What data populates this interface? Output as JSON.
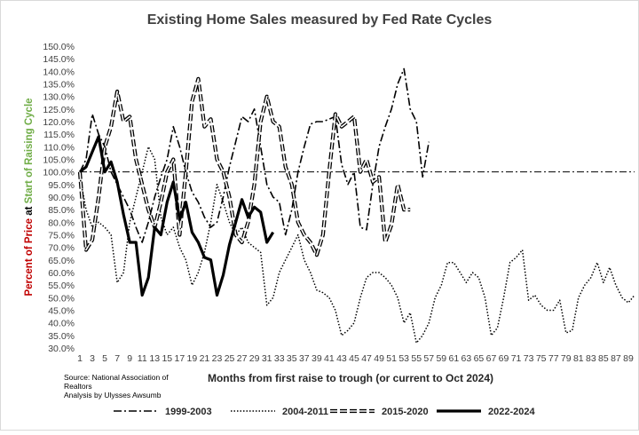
{
  "chart_data": {
    "type": "line",
    "title": "Existing Home  Sales  measured by Fed Rate Cycles",
    "xlabel": "Months from first raise to trough (or current to Oct 2024)",
    "ylabel_parts": [
      {
        "text": "Percent of Price",
        "color": "#c00000"
      },
      {
        "text": " at ",
        "color": "#000000"
      },
      {
        "text": "Start of Raising Cycle",
        "color": "#70ad47"
      }
    ],
    "ylim": [
      0.3,
      1.5
    ],
    "y_ticks": [
      0.3,
      0.35,
      0.4,
      0.45,
      0.5,
      0.55,
      0.6,
      0.65,
      0.7,
      0.75,
      0.8,
      0.85,
      0.9,
      0.95,
      1.0,
      1.05,
      1.1,
      1.15,
      1.2,
      1.25,
      1.3,
      1.35,
      1.4,
      1.45,
      1.5
    ],
    "y_tick_labels": [
      "30.0%",
      "35.0%",
      "40.0%",
      "45.0%",
      "50.0%",
      "55.0%",
      "60.0%",
      "65.0%",
      "70.0%",
      "75.0%",
      "80.0%",
      "85.0%",
      "90.0%",
      "95.0%",
      "100.0%",
      "105.0%",
      "110.0%",
      "115.0%",
      "120.0%",
      "125.0%",
      "130.0%",
      "135.0%",
      "140.0%",
      "145.0%",
      "150.0%"
    ],
    "xlim": [
      1,
      90
    ],
    "x_ticks": [
      1,
      3,
      5,
      7,
      9,
      11,
      13,
      15,
      17,
      19,
      21,
      23,
      25,
      27,
      29,
      31,
      33,
      35,
      37,
      39,
      41,
      43,
      45,
      47,
      49,
      51,
      53,
      55,
      57,
      59,
      61,
      63,
      65,
      67,
      69,
      71,
      73,
      75,
      77,
      79,
      81,
      83,
      85,
      87,
      89
    ],
    "x_tick_labels": [
      "1",
      "3",
      "5",
      "7",
      "9",
      "11",
      "13",
      "15",
      "17",
      "19",
      "21",
      "23",
      "25",
      "27",
      "29",
      "31",
      "33",
      "35",
      "37",
      "39",
      "41",
      "43",
      "45",
      "47",
      "49",
      "51",
      "53",
      "55",
      "57",
      "59",
      "61",
      "63",
      "65",
      "67",
      "69",
      "71",
      "73",
      "75",
      "77",
      "79",
      "81",
      "83",
      "85",
      "87",
      "89"
    ],
    "reference_line": 1.0,
    "grid": false,
    "legend_position": "bottom",
    "source_note": [
      "Source: National Association of",
      "Realtors",
      "Analysis by Ulysses Awsumb"
    ],
    "series": [
      {
        "name": "1999-2003",
        "style": "dashdot",
        "x": [
          1,
          2,
          3,
          4,
          5,
          6,
          7,
          8,
          9,
          10,
          11,
          12,
          13,
          14,
          15,
          16,
          17,
          18,
          19,
          20,
          21,
          22,
          23,
          24,
          25,
          26,
          27,
          28,
          29,
          30,
          31,
          32,
          33,
          34,
          35,
          36,
          37,
          38,
          39,
          40,
          41,
          42,
          43,
          44,
          45,
          46,
          47,
          48,
          49,
          50,
          51,
          52,
          53,
          54,
          55,
          56,
          57
        ],
        "values": [
          1.0,
          1.05,
          1.23,
          1.15,
          1.1,
          1.0,
          0.95,
          0.9,
          0.85,
          0.78,
          0.72,
          0.8,
          0.9,
          0.98,
          1.05,
          1.18,
          1.1,
          1.0,
          0.92,
          0.88,
          0.82,
          0.78,
          0.8,
          0.9,
          1.02,
          1.12,
          1.22,
          1.2,
          1.25,
          1.1,
          0.95,
          0.9,
          0.88,
          0.75,
          0.85,
          1.0,
          1.1,
          1.19,
          1.2,
          1.2,
          1.21,
          1.22,
          1.03,
          0.95,
          1.0,
          0.78,
          0.77,
          0.95,
          1.1,
          1.18,
          1.25,
          1.35,
          1.41,
          1.25,
          1.2,
          0.98,
          1.12
        ]
      },
      {
        "name": "2004-2011",
        "style": "dotted",
        "x": [
          1,
          2,
          3,
          4,
          5,
          6,
          7,
          8,
          9,
          10,
          11,
          12,
          13,
          14,
          15,
          16,
          17,
          18,
          19,
          20,
          21,
          22,
          23,
          24,
          25,
          26,
          27,
          28,
          29,
          30,
          31,
          32,
          33,
          34,
          35,
          36,
          37,
          38,
          39,
          40,
          41,
          42,
          43,
          44,
          45,
          46,
          47,
          48,
          49,
          50,
          51,
          52,
          53,
          54,
          55,
          56,
          57,
          58,
          59,
          60,
          61,
          62,
          63,
          64,
          65,
          66,
          67,
          68,
          69,
          70,
          71,
          72,
          73,
          74,
          75,
          76,
          77,
          78,
          79,
          80,
          81,
          82,
          83,
          84,
          85,
          86,
          87,
          88,
          89,
          90
        ],
        "values": [
          0.98,
          0.85,
          0.78,
          0.8,
          0.78,
          0.75,
          0.56,
          0.6,
          0.8,
          0.9,
          1.0,
          1.1,
          1.05,
          0.82,
          0.75,
          0.78,
          0.7,
          0.65,
          0.55,
          0.6,
          0.68,
          0.8,
          0.95,
          0.88,
          0.8,
          0.75,
          0.78,
          0.72,
          0.7,
          0.68,
          0.47,
          0.5,
          0.6,
          0.65,
          0.7,
          0.75,
          0.65,
          0.6,
          0.53,
          0.52,
          0.5,
          0.45,
          0.35,
          0.37,
          0.4,
          0.5,
          0.58,
          0.6,
          0.6,
          0.58,
          0.55,
          0.5,
          0.4,
          0.44,
          0.32,
          0.35,
          0.4,
          0.5,
          0.55,
          0.64,
          0.64,
          0.6,
          0.56,
          0.6,
          0.58,
          0.5,
          0.35,
          0.38,
          0.5,
          0.64,
          0.66,
          0.69,
          0.49,
          0.51,
          0.47,
          0.45,
          0.45,
          0.49,
          0.36,
          0.37,
          0.5,
          0.55,
          0.58,
          0.64,
          0.56,
          0.62,
          0.55,
          0.5,
          0.48,
          0.51
        ]
      },
      {
        "name": "2015-2020",
        "style": "double",
        "x": [
          1,
          2,
          3,
          4,
          5,
          6,
          7,
          8,
          9,
          10,
          11,
          12,
          13,
          14,
          15,
          16,
          17,
          18,
          19,
          20,
          21,
          22,
          23,
          24,
          25,
          26,
          27,
          28,
          29,
          30,
          31,
          32,
          33,
          34,
          35,
          36,
          37,
          38,
          39,
          40,
          41,
          42,
          43,
          44,
          45,
          46,
          47,
          48,
          49,
          50,
          51,
          52,
          53,
          54
        ],
        "values": [
          1.0,
          0.69,
          0.73,
          0.9,
          1.1,
          1.18,
          1.32,
          1.2,
          1.22,
          1.05,
          0.95,
          0.85,
          0.78,
          0.88,
          1.0,
          1.05,
          0.75,
          1.0,
          1.28,
          1.37,
          1.18,
          1.21,
          1.05,
          1.0,
          0.9,
          0.75,
          0.72,
          0.8,
          0.95,
          1.2,
          1.3,
          1.2,
          1.18,
          1.02,
          0.95,
          0.8,
          0.75,
          0.72,
          0.67,
          0.75,
          1.0,
          1.23,
          1.18,
          1.2,
          1.22,
          1.0,
          1.05,
          0.96,
          0.98,
          0.72,
          0.79,
          0.95,
          0.85,
          0.85
        ]
      },
      {
        "name": "2022-2024",
        "style": "solid-thick",
        "x": [
          1,
          2,
          3,
          4,
          5,
          6,
          7,
          8,
          9,
          10,
          11,
          12,
          13,
          14,
          15,
          16,
          17,
          18,
          19,
          20,
          21,
          22,
          23,
          24,
          25,
          26,
          27,
          28,
          29,
          30,
          31,
          32
        ],
        "values": [
          1.0,
          1.02,
          1.08,
          1.14,
          1.0,
          1.04,
          0.96,
          0.83,
          0.72,
          0.72,
          0.51,
          0.58,
          0.78,
          0.75,
          0.88,
          0.96,
          0.81,
          0.88,
          0.76,
          0.72,
          0.66,
          0.65,
          0.51,
          0.59,
          0.71,
          0.8,
          0.89,
          0.82,
          0.86,
          0.84,
          0.72,
          0.76
        ]
      }
    ]
  }
}
